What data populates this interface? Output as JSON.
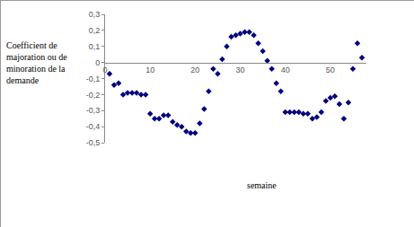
{
  "chart_data": {
    "type": "scatter",
    "x_label": "semaine",
    "y_label": "Coefficient de majoration ou de minoration de la demande",
    "x": [
      1,
      2,
      3,
      4,
      5,
      6,
      7,
      8,
      9,
      10,
      11,
      12,
      13,
      14,
      15,
      16,
      17,
      18,
      19,
      20,
      21,
      22,
      23,
      24,
      25,
      26,
      27,
      28,
      29,
      30,
      31,
      32,
      33,
      34,
      35,
      36,
      37,
      38,
      39,
      40,
      41,
      42,
      43,
      44,
      45,
      46,
      47,
      48,
      49,
      50,
      51,
      52,
      53,
      54,
      55,
      56,
      57
    ],
    "values": [
      -0.07,
      -0.14,
      -0.13,
      -0.2,
      -0.19,
      -0.19,
      -0.19,
      -0.2,
      -0.2,
      -0.32,
      -0.35,
      -0.35,
      -0.33,
      -0.33,
      -0.37,
      -0.39,
      -0.4,
      -0.43,
      -0.44,
      -0.44,
      -0.38,
      -0.29,
      -0.18,
      -0.04,
      -0.07,
      0.02,
      0.1,
      0.16,
      0.17,
      0.18,
      0.19,
      0.19,
      0.17,
      0.12,
      0.07,
      0.01,
      -0.04,
      -0.13,
      -0.18,
      -0.31,
      -0.31,
      -0.31,
      -0.31,
      -0.32,
      -0.32,
      -0.35,
      -0.34,
      -0.31,
      -0.24,
      -0.22,
      -0.21,
      -0.26,
      -0.35,
      -0.25,
      -0.04,
      0.12,
      0.03
    ],
    "color": "#000080",
    "marker": "diamond",
    "xlim": [
      0,
      58
    ],
    "xticks": [
      0,
      10,
      20,
      30,
      40,
      50
    ],
    "ylim": [
      -0.5,
      0.3
    ],
    "yticks": [
      {
        "value": 0.3,
        "label": "0,3"
      },
      {
        "value": 0.2,
        "label": "0,2"
      },
      {
        "value": 0.1,
        "label": "0,1"
      },
      0,
      {
        "value": -0.1,
        "label": "-0,1"
      },
      {
        "value": -0.2,
        "label": "-0,2"
      },
      {
        "value": -0.3,
        "label": "-0,3"
      },
      {
        "value": -0.4,
        "label": "-0,4"
      },
      {
        "value": -0.5,
        "label": "-0,5"
      }
    ],
    "grid": false
  }
}
